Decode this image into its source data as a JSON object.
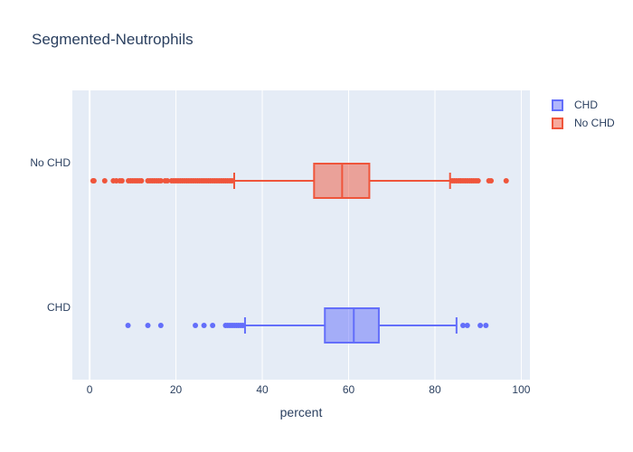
{
  "chart_data": {
    "type": "box",
    "orientation": "horizontal",
    "title": "Segmented-Neutrophils",
    "xlabel": "percent",
    "ylabel": "",
    "xlim": [
      -4,
      102
    ],
    "xticks": [
      0,
      20,
      40,
      60,
      80,
      100
    ],
    "categories": [
      "CHD",
      "No CHD"
    ],
    "grid": true,
    "legend_position": "top-right",
    "series": [
      {
        "name": "CHD",
        "category": "CHD",
        "color": "#636efa",
        "fill": "rgba(99,110,250,0.5)",
        "q1": 54.5,
        "median": 61.2,
        "q3": 67.0,
        "whisker_low": 36.0,
        "whisker_high": 85.0,
        "outliers": [
          8.9,
          13.5,
          16.5,
          24.5,
          26.5,
          28.5,
          31.5,
          32.0,
          32.5,
          33.0,
          33.5,
          34.0,
          34.5,
          35.0,
          35.5,
          86.5,
          87.5,
          90.5,
          91.8
        ]
      },
      {
        "name": "No CHD",
        "category": "No CHD",
        "color": "#ef553b",
        "fill": "rgba(239,85,59,0.5)",
        "q1": 52.0,
        "median": 58.5,
        "q3": 64.8,
        "whisker_low": 33.5,
        "whisker_high": 83.5,
        "outliers": [
          0.8,
          1.0,
          3.5,
          5.5,
          6.2,
          7.0,
          7.5,
          9.0,
          9.5,
          10.0,
          10.5,
          11.0,
          11.5,
          12.0,
          13.5,
          14.0,
          14.5,
          15.0,
          15.5,
          16.0,
          16.5,
          17.5,
          18.0,
          19.0,
          19.5,
          20.0,
          20.5,
          21.0,
          21.5,
          22.0,
          22.5,
          23.0,
          23.5,
          24.0,
          24.5,
          25.0,
          25.5,
          26.0,
          26.5,
          27.0,
          27.5,
          28.0,
          28.5,
          29.0,
          29.5,
          30.0,
          30.5,
          31.0,
          31.5,
          32.0,
          32.5,
          33.0,
          84.0,
          84.5,
          85.0,
          85.5,
          86.0,
          86.5,
          87.0,
          87.5,
          88.0,
          88.5,
          89.0,
          89.5,
          90.0,
          92.5,
          93.0,
          96.5
        ]
      }
    ]
  }
}
